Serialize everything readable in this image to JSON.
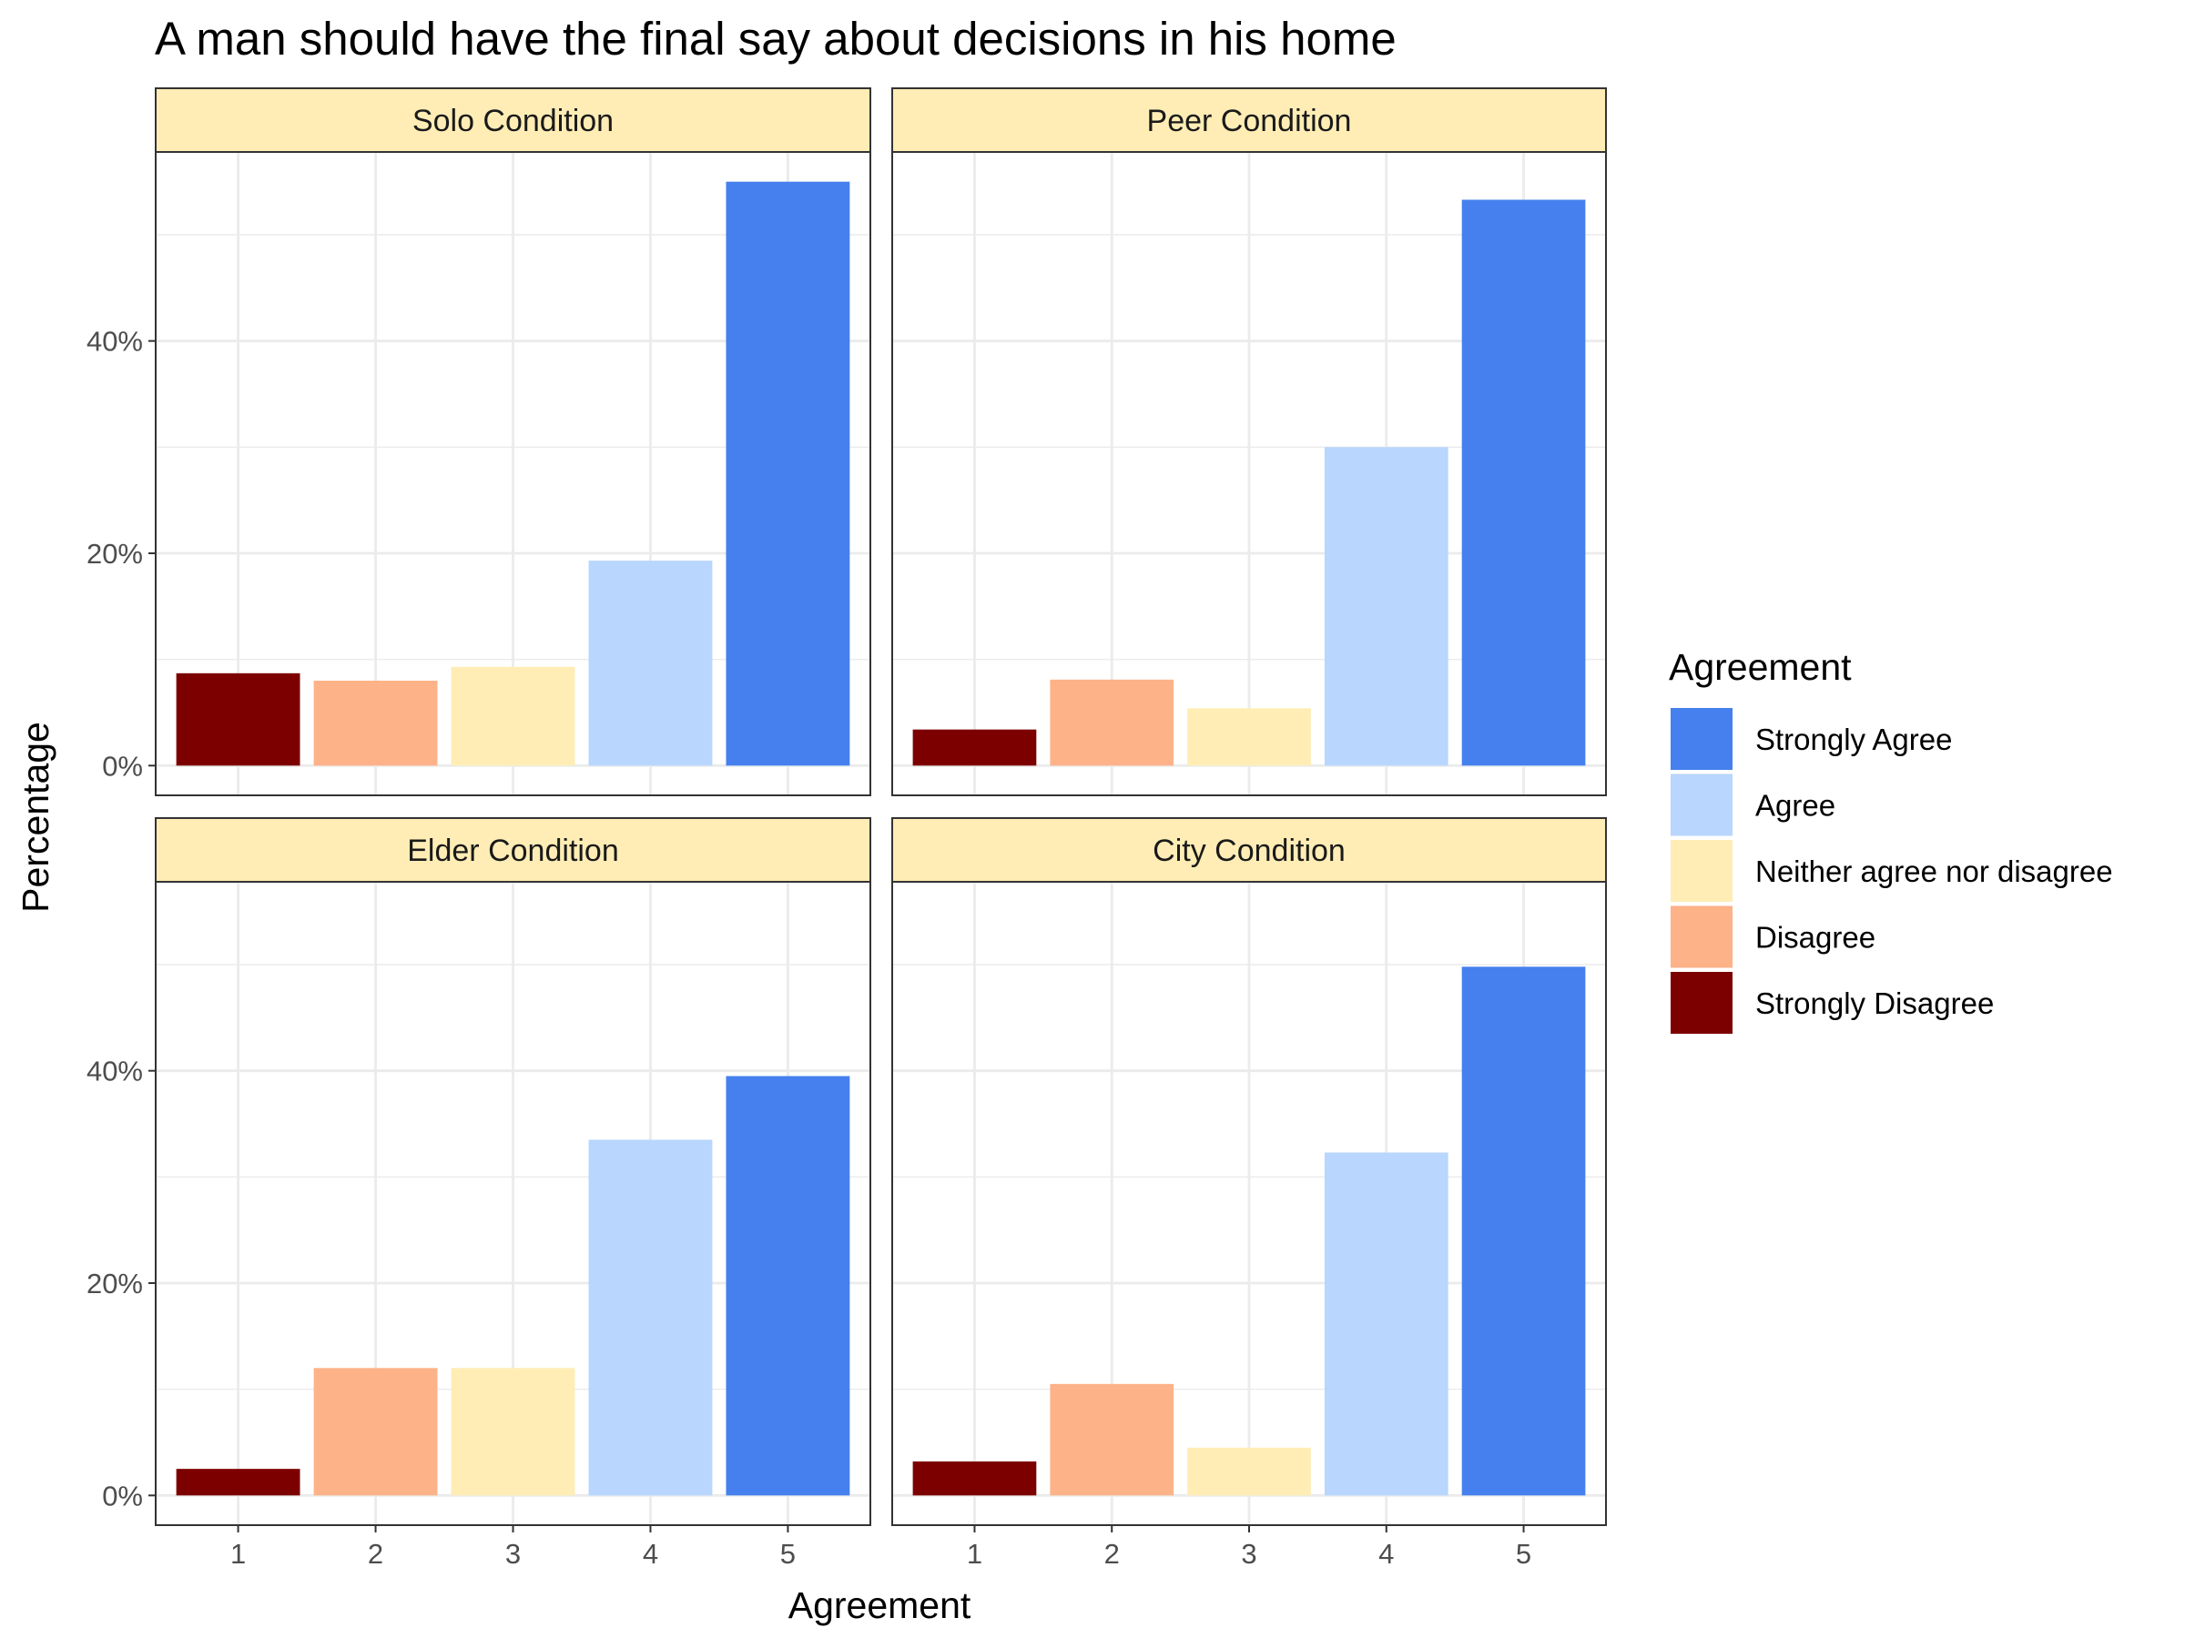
{
  "chart_data": {
    "type": "bar",
    "title": "A man should have the final say about decisions in his home",
    "xlabel": "Agreement",
    "ylabel": "Percentage",
    "categories": [
      "1",
      "2",
      "3",
      "4",
      "5"
    ],
    "y_ticks": [
      0,
      20,
      40
    ],
    "y_tick_labels": [
      "0%",
      "20%",
      "40%"
    ],
    "ylim": [
      -2.8,
      57.8
    ],
    "grid": true,
    "facet_strip_color": "#FFEDB5",
    "panels": [
      {
        "name": "Solo Condition",
        "values": [
          8.7,
          8.0,
          9.3,
          19.3,
          55.0
        ]
      },
      {
        "name": "Peer Condition",
        "values": [
          3.4,
          8.1,
          5.4,
          30.0,
          53.3
        ]
      },
      {
        "name": "Elder Condition",
        "values": [
          2.5,
          12.0,
          12.0,
          33.5,
          39.5
        ]
      },
      {
        "name": "City Condition",
        "values": [
          3.2,
          10.5,
          4.5,
          32.3,
          49.8
        ]
      }
    ],
    "legend": {
      "title": "Agreement",
      "placement": "right",
      "entries": [
        {
          "label": "Strongly Agree",
          "color": "#4580EE"
        },
        {
          "label": "Agree",
          "color": "#B8D6FE"
        },
        {
          "label": "Neither agree nor disagree",
          "color": "#FFEDB5"
        },
        {
          "label": "Disagree",
          "color": "#FDB288"
        },
        {
          "label": "Strongly Disagree",
          "color": "#7D0000"
        }
      ]
    },
    "bar_colors": [
      "#7D0000",
      "#FDB288",
      "#FFEDB5",
      "#B8D6FE",
      "#4580EE"
    ]
  }
}
